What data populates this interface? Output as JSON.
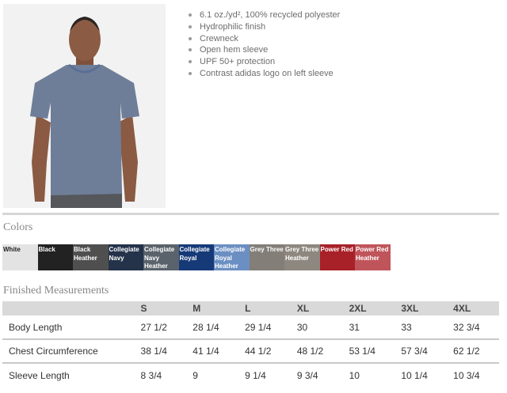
{
  "features": [
    "6.1 oz./yd², 100% recycled polyester",
    "Hydrophilic finish",
    "Crewneck",
    "Open hem sleeve",
    "UPF 50+ protection",
    "Contrast adidas logo on left sleeve"
  ],
  "colors_title": "Colors",
  "colors": [
    {
      "label": "White",
      "hex": "#e3e3e3",
      "text": "#222"
    },
    {
      "label": "Black",
      "hex": "#222222",
      "text": "#fff"
    },
    {
      "label": "Black Heather",
      "hex": "#4f4f4f",
      "text": "#fff"
    },
    {
      "label": "Collegiate Navy",
      "hex": "#24324a",
      "text": "#fff"
    },
    {
      "label": "Collegiate Navy Heather",
      "hex": "#5a626b",
      "text": "#fff"
    },
    {
      "label": "Collegiate Royal",
      "hex": "#163a78",
      "text": "#fff"
    },
    {
      "label": "Collegiate Royal Heather",
      "hex": "#6b8fc2",
      "text": "#fff"
    },
    {
      "label": "Grey Three",
      "hex": "#837e78",
      "text": "#fff"
    },
    {
      "label": "Grey Three Heather",
      "hex": "#8e877f",
      "text": "#fff"
    },
    {
      "label": "Power Red",
      "hex": "#a82129",
      "text": "#fff"
    },
    {
      "label": "Power Red Heather",
      "hex": "#c0545b",
      "text": "#fff"
    }
  ],
  "measurements_title": "Finished Measurements",
  "table": {
    "headers": [
      "",
      "S",
      "M",
      "L",
      "XL",
      "2XL",
      "3XL",
      "4XL"
    ],
    "rows": [
      [
        "Body Length",
        "27 1/2",
        "28 1/4",
        "29 1/4",
        "30",
        "31",
        "33",
        "32 3/4"
      ],
      [
        "Chest Circumference",
        "38 1/4",
        "41 1/4",
        "44 1/2",
        "48 1/2",
        "53 1/4",
        "57 3/4",
        "62 1/2"
      ],
      [
        "Sleeve Length",
        "8 3/4",
        "9",
        "9 1/4",
        "9 3/4",
        "10",
        "10 1/4",
        "10 3/4"
      ]
    ]
  }
}
